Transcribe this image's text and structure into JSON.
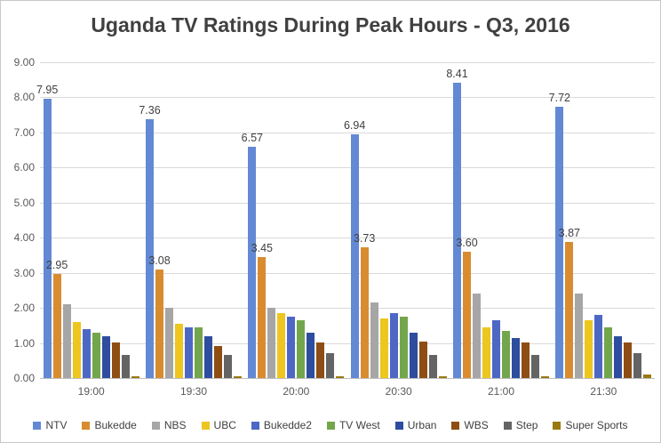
{
  "title": "Uganda TV Ratings During Peak Hours - Q3, 2016",
  "chart_data": {
    "type": "bar",
    "title": "Uganda TV Ratings During Peak Hours - Q3, 2016",
    "xlabel": "",
    "ylabel": "",
    "ylim": [
      0,
      9
    ],
    "ytick_step": 1,
    "yticks": [
      "0.00",
      "1.00",
      "2.00",
      "3.00",
      "4.00",
      "5.00",
      "6.00",
      "7.00",
      "8.00",
      "9.00"
    ],
    "grid": true,
    "legend_position": "bottom",
    "categories": [
      "19:00",
      "19:30",
      "20:00",
      "20:30",
      "21:00",
      "21:30"
    ],
    "series": [
      {
        "name": "NTV",
        "color": "#6389d4",
        "values": [
          7.95,
          7.36,
          6.57,
          6.94,
          8.41,
          7.72
        ],
        "labels": [
          "7.95",
          "7.36",
          "6.57",
          "6.94",
          "8.41",
          "7.72"
        ]
      },
      {
        "name": "Bukedde",
        "color": "#d98c2f",
        "values": [
          2.95,
          3.08,
          3.45,
          3.73,
          3.6,
          3.87
        ],
        "labels": [
          "2.95",
          "3.08",
          "3.45",
          "3.73",
          "3.60",
          "3.87"
        ]
      },
      {
        "name": "NBS",
        "color": "#a6a6a6",
        "values": [
          2.1,
          2.0,
          2.0,
          2.15,
          2.4,
          2.4
        ]
      },
      {
        "name": "UBC",
        "color": "#edc620",
        "values": [
          1.6,
          1.55,
          1.85,
          1.7,
          1.45,
          1.65
        ]
      },
      {
        "name": "Bukedde2",
        "color": "#4d68c4",
        "values": [
          1.4,
          1.45,
          1.75,
          1.85,
          1.65,
          1.8
        ]
      },
      {
        "name": "TV West",
        "color": "#73a64c",
        "values": [
          1.3,
          1.45,
          1.65,
          1.75,
          1.35,
          1.45
        ]
      },
      {
        "name": "Urban",
        "color": "#2e4d9e",
        "values": [
          1.2,
          1.2,
          1.3,
          1.3,
          1.15,
          1.2
        ]
      },
      {
        "name": "WBS",
        "color": "#8e4e13",
        "values": [
          1.0,
          0.9,
          1.0,
          1.05,
          1.0,
          1.0
        ]
      },
      {
        "name": "Step",
        "color": "#646464",
        "values": [
          0.65,
          0.65,
          0.7,
          0.65,
          0.65,
          0.7
        ]
      },
      {
        "name": "Super Sports",
        "color": "#99790f",
        "values": [
          0.05,
          0.05,
          0.05,
          0.05,
          0.05,
          0.1
        ]
      }
    ]
  }
}
